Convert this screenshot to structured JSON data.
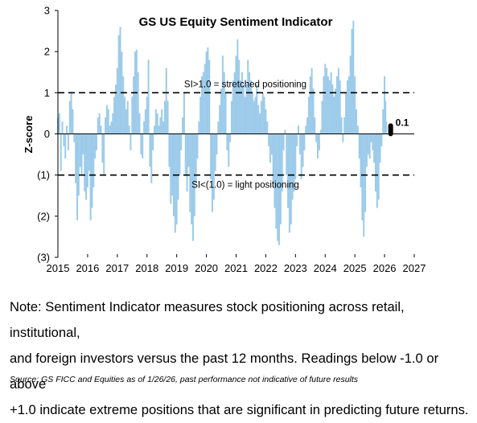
{
  "chart_data": {
    "type": "bar",
    "title": "GS US Equity  Sentiment Indicator",
    "ylabel": "Z-score",
    "xlabel": "",
    "ylim": [
      -3,
      3
    ],
    "xlim": [
      2015,
      2027
    ],
    "y_tick_labels": [
      "3",
      "2",
      "1",
      "0",
      "(1)",
      "(2)",
      "(3)"
    ],
    "x_tick_labels": [
      "2015",
      "2016",
      "2017",
      "2018",
      "2019",
      "2020",
      "2021",
      "2022",
      "2023",
      "2024",
      "2025",
      "2026",
      "2027"
    ],
    "bar_color": "#9dcbea",
    "threshold_color": "#000000",
    "thresholds": [
      {
        "value": 1.0,
        "label": "SI>1.0 = stretched positioning"
      },
      {
        "value": -1.0,
        "label": "SI<(1.0) = light positioning"
      }
    ],
    "latest": {
      "x": 2026.07,
      "value": 0.1,
      "label": "0.1"
    },
    "grid": false,
    "legend": "none",
    "series": [
      {
        "points": [
          [
            2015.0,
            0.4
          ],
          [
            2015.05,
            0.5
          ],
          [
            2015.1,
            -0.9
          ],
          [
            2015.15,
            0.3
          ],
          [
            2015.2,
            -0.3
          ],
          [
            2015.25,
            -0.6
          ],
          [
            2015.3,
            0.2
          ],
          [
            2015.35,
            -0.4
          ],
          [
            2015.4,
            0.8
          ],
          [
            2015.45,
            1.0
          ],
          [
            2015.5,
            0.6
          ],
          [
            2015.55,
            -0.2
          ],
          [
            2015.6,
            -1.2
          ],
          [
            2015.65,
            -2.1
          ],
          [
            2015.7,
            -1.5
          ],
          [
            2015.75,
            -0.8
          ],
          [
            2015.8,
            -1.0
          ],
          [
            2015.85,
            -0.5
          ],
          [
            2015.9,
            -1.4
          ],
          [
            2015.95,
            -1.6
          ],
          [
            2016.0,
            -1.3
          ],
          [
            2016.05,
            -0.9
          ],
          [
            2016.1,
            -2.1
          ],
          [
            2016.15,
            -1.8
          ],
          [
            2016.2,
            -1.3
          ],
          [
            2016.25,
            -0.6
          ],
          [
            2016.3,
            -0.4
          ],
          [
            2016.35,
            0.4
          ],
          [
            2016.4,
            0.5
          ],
          [
            2016.45,
            0.2
          ],
          [
            2016.5,
            -0.7
          ],
          [
            2016.55,
            -1.0
          ],
          [
            2016.6,
            0.4
          ],
          [
            2016.65,
            0.7
          ],
          [
            2016.7,
            0.6
          ],
          [
            2016.75,
            0.2
          ],
          [
            2016.8,
            0.3
          ],
          [
            2016.85,
            0.5
          ],
          [
            2016.9,
            0.9
          ],
          [
            2016.95,
            1.2
          ],
          [
            2017.0,
            1.6
          ],
          [
            2017.05,
            2.4
          ],
          [
            2017.1,
            2.6
          ],
          [
            2017.15,
            2.0
          ],
          [
            2017.2,
            1.4
          ],
          [
            2017.25,
            0.9
          ],
          [
            2017.3,
            0.6
          ],
          [
            2017.35,
            0.8
          ],
          [
            2017.4,
            0.2
          ],
          [
            2017.45,
            -0.4
          ],
          [
            2017.5,
            0.9
          ],
          [
            2017.55,
            1.4
          ],
          [
            2017.6,
            2.0
          ],
          [
            2017.65,
            2.05
          ],
          [
            2017.7,
            1.5
          ],
          [
            2017.75,
            0.5
          ],
          [
            2017.8,
            -0.5
          ],
          [
            2017.85,
            -0.6
          ],
          [
            2017.9,
            0.3
          ],
          [
            2017.95,
            0.6
          ],
          [
            2018.0,
            0.9
          ],
          [
            2018.05,
            1.8
          ],
          [
            2018.1,
            -0.8
          ],
          [
            2018.15,
            -1.2
          ],
          [
            2018.2,
            -0.4
          ],
          [
            2018.25,
            0.2
          ],
          [
            2018.3,
            0.6
          ],
          [
            2018.35,
            0.5
          ],
          [
            2018.4,
            0.2
          ],
          [
            2018.45,
            0.4
          ],
          [
            2018.5,
            0.6
          ],
          [
            2018.55,
            0.3
          ],
          [
            2018.6,
            0.8
          ],
          [
            2018.65,
            1.6
          ],
          [
            2018.7,
            0.8
          ],
          [
            2018.75,
            -0.8
          ],
          [
            2018.8,
            -1.7
          ],
          [
            2018.85,
            -1.5
          ],
          [
            2018.9,
            -2.0
          ],
          [
            2018.95,
            -2.4
          ],
          [
            2019.0,
            -2.2
          ],
          [
            2019.05,
            -1.6
          ],
          [
            2019.1,
            -1.0
          ],
          [
            2019.15,
            -0.4
          ],
          [
            2019.2,
            0.4
          ],
          [
            2019.25,
            1.0
          ],
          [
            2019.3,
            -1.0
          ],
          [
            2019.35,
            -1.4
          ],
          [
            2019.4,
            -0.8
          ],
          [
            2019.45,
            -1.9
          ],
          [
            2019.5,
            -2.2
          ],
          [
            2019.55,
            -2.6
          ],
          [
            2019.6,
            -2.0
          ],
          [
            2019.65,
            -1.2
          ],
          [
            2019.7,
            -0.6
          ],
          [
            2019.75,
            0.3
          ],
          [
            2019.8,
            0.9
          ],
          [
            2019.85,
            1.4
          ],
          [
            2019.9,
            1.5
          ],
          [
            2019.95,
            1.7
          ],
          [
            2020.0,
            2.0
          ],
          [
            2020.05,
            2.1
          ],
          [
            2020.1,
            1.8
          ],
          [
            2020.15,
            -1.1
          ],
          [
            2020.2,
            -1.9
          ],
          [
            2020.25,
            -1.6
          ],
          [
            2020.3,
            -0.9
          ],
          [
            2020.35,
            -0.5
          ],
          [
            2020.4,
            0.3
          ],
          [
            2020.45,
            0.7
          ],
          [
            2020.5,
            1.1
          ],
          [
            2020.55,
            1.9
          ],
          [
            2020.6,
            1.5
          ],
          [
            2020.65,
            1.0
          ],
          [
            2020.7,
            -0.4
          ],
          [
            2020.75,
            -0.8
          ],
          [
            2020.8,
            -0.2
          ],
          [
            2020.85,
            0.8
          ],
          [
            2020.9,
            1.3
          ],
          [
            2020.95,
            1.5
          ],
          [
            2021.0,
            1.9
          ],
          [
            2021.05,
            2.3
          ],
          [
            2021.1,
            1.8
          ],
          [
            2021.15,
            1.3
          ],
          [
            2021.2,
            1.5
          ],
          [
            2021.25,
            1.2
          ],
          [
            2021.3,
            0.9
          ],
          [
            2021.35,
            1.2
          ],
          [
            2021.4,
            1.8
          ],
          [
            2021.45,
            1.5
          ],
          [
            2021.5,
            1.3
          ],
          [
            2021.55,
            1.0
          ],
          [
            2021.6,
            0.8
          ],
          [
            2021.65,
            0.9
          ],
          [
            2021.7,
            1.2
          ],
          [
            2021.75,
            0.7
          ],
          [
            2021.8,
            0.5
          ],
          [
            2021.85,
            0.8
          ],
          [
            2021.9,
            1.0
          ],
          [
            2021.95,
            0.9
          ],
          [
            2022.0,
            0.6
          ],
          [
            2022.05,
            0.3
          ],
          [
            2022.1,
            -0.3
          ],
          [
            2022.15,
            -0.7
          ],
          [
            2022.2,
            -0.5
          ],
          [
            2022.25,
            -1.2
          ],
          [
            2022.3,
            -1.8
          ],
          [
            2022.35,
            -2.3
          ],
          [
            2022.4,
            -2.6
          ],
          [
            2022.45,
            -2.7
          ],
          [
            2022.5,
            -2.2
          ],
          [
            2022.55,
            -1.4
          ],
          [
            2022.6,
            -0.4
          ],
          [
            2022.65,
            0.1
          ],
          [
            2022.7,
            -1.0
          ],
          [
            2022.75,
            -1.8
          ],
          [
            2022.8,
            -2.4
          ],
          [
            2022.85,
            -2.2
          ],
          [
            2022.9,
            -1.6
          ],
          [
            2022.95,
            -1.4
          ],
          [
            2023.0,
            -1.1
          ],
          [
            2023.05,
            -0.3
          ],
          [
            2023.1,
            0.2
          ],
          [
            2023.15,
            -0.5
          ],
          [
            2023.2,
            -1.1
          ],
          [
            2023.25,
            -0.8
          ],
          [
            2023.3,
            -0.4
          ],
          [
            2023.35,
            0.2
          ],
          [
            2023.4,
            0.4
          ],
          [
            2023.45,
            0.9
          ],
          [
            2023.5,
            1.4
          ],
          [
            2023.55,
            1.6
          ],
          [
            2023.6,
            1.1
          ],
          [
            2023.65,
            0.4
          ],
          [
            2023.7,
            -0.2
          ],
          [
            2023.75,
            -0.6
          ],
          [
            2023.8,
            -0.4
          ],
          [
            2023.85,
            0.1
          ],
          [
            2023.9,
            0.8
          ],
          [
            2023.95,
            1.4
          ],
          [
            2024.0,
            1.7
          ],
          [
            2024.05,
            1.6
          ],
          [
            2024.1,
            1.4
          ],
          [
            2024.15,
            1.3
          ],
          [
            2024.2,
            1.5
          ],
          [
            2024.25,
            1.2
          ],
          [
            2024.3,
            0.9
          ],
          [
            2024.35,
            1.1
          ],
          [
            2024.4,
            1.4
          ],
          [
            2024.45,
            1.6
          ],
          [
            2024.5,
            1.3
          ],
          [
            2024.55,
            0.4
          ],
          [
            2024.6,
            -0.2
          ],
          [
            2024.65,
            0.4
          ],
          [
            2024.7,
            1.0
          ],
          [
            2024.75,
            1.3
          ],
          [
            2024.8,
            1.4
          ],
          [
            2024.85,
            1.9
          ],
          [
            2024.9,
            2.55
          ],
          [
            2024.95,
            2.75
          ],
          [
            2025.0,
            1.4
          ],
          [
            2025.05,
            0.6
          ],
          [
            2025.1,
            0.2
          ],
          [
            2025.15,
            -0.6
          ],
          [
            2025.2,
            -1.3
          ],
          [
            2025.25,
            -2.1
          ],
          [
            2025.3,
            -2.5
          ],
          [
            2025.35,
            -1.9
          ],
          [
            2025.4,
            -0.8
          ],
          [
            2025.45,
            -0.5
          ],
          [
            2025.5,
            -0.6
          ],
          [
            2025.55,
            -0.2
          ],
          [
            2025.6,
            -0.4
          ],
          [
            2025.65,
            -0.7
          ],
          [
            2025.7,
            -1.4
          ],
          [
            2025.75,
            -1.8
          ],
          [
            2025.8,
            -1.6
          ],
          [
            2025.85,
            -0.7
          ],
          [
            2025.9,
            -0.3
          ],
          [
            2025.95,
            0.6
          ],
          [
            2026.0,
            1.4
          ],
          [
            2026.03,
            0.8
          ],
          [
            2026.06,
            0.3
          ]
        ]
      }
    ]
  },
  "note": {
    "lines": [
      "Note: Sentiment Indicator measures stock positioning across retail, institutional,",
      "and foreign investors versus the past 12 months. Readings below -1.0 or above",
      "+1.0 indicate extreme positions that are significant in predicting future returns."
    ]
  },
  "source": "Source: GS FICC and Equities as of 1/26/26, past performance not indicative of future results"
}
